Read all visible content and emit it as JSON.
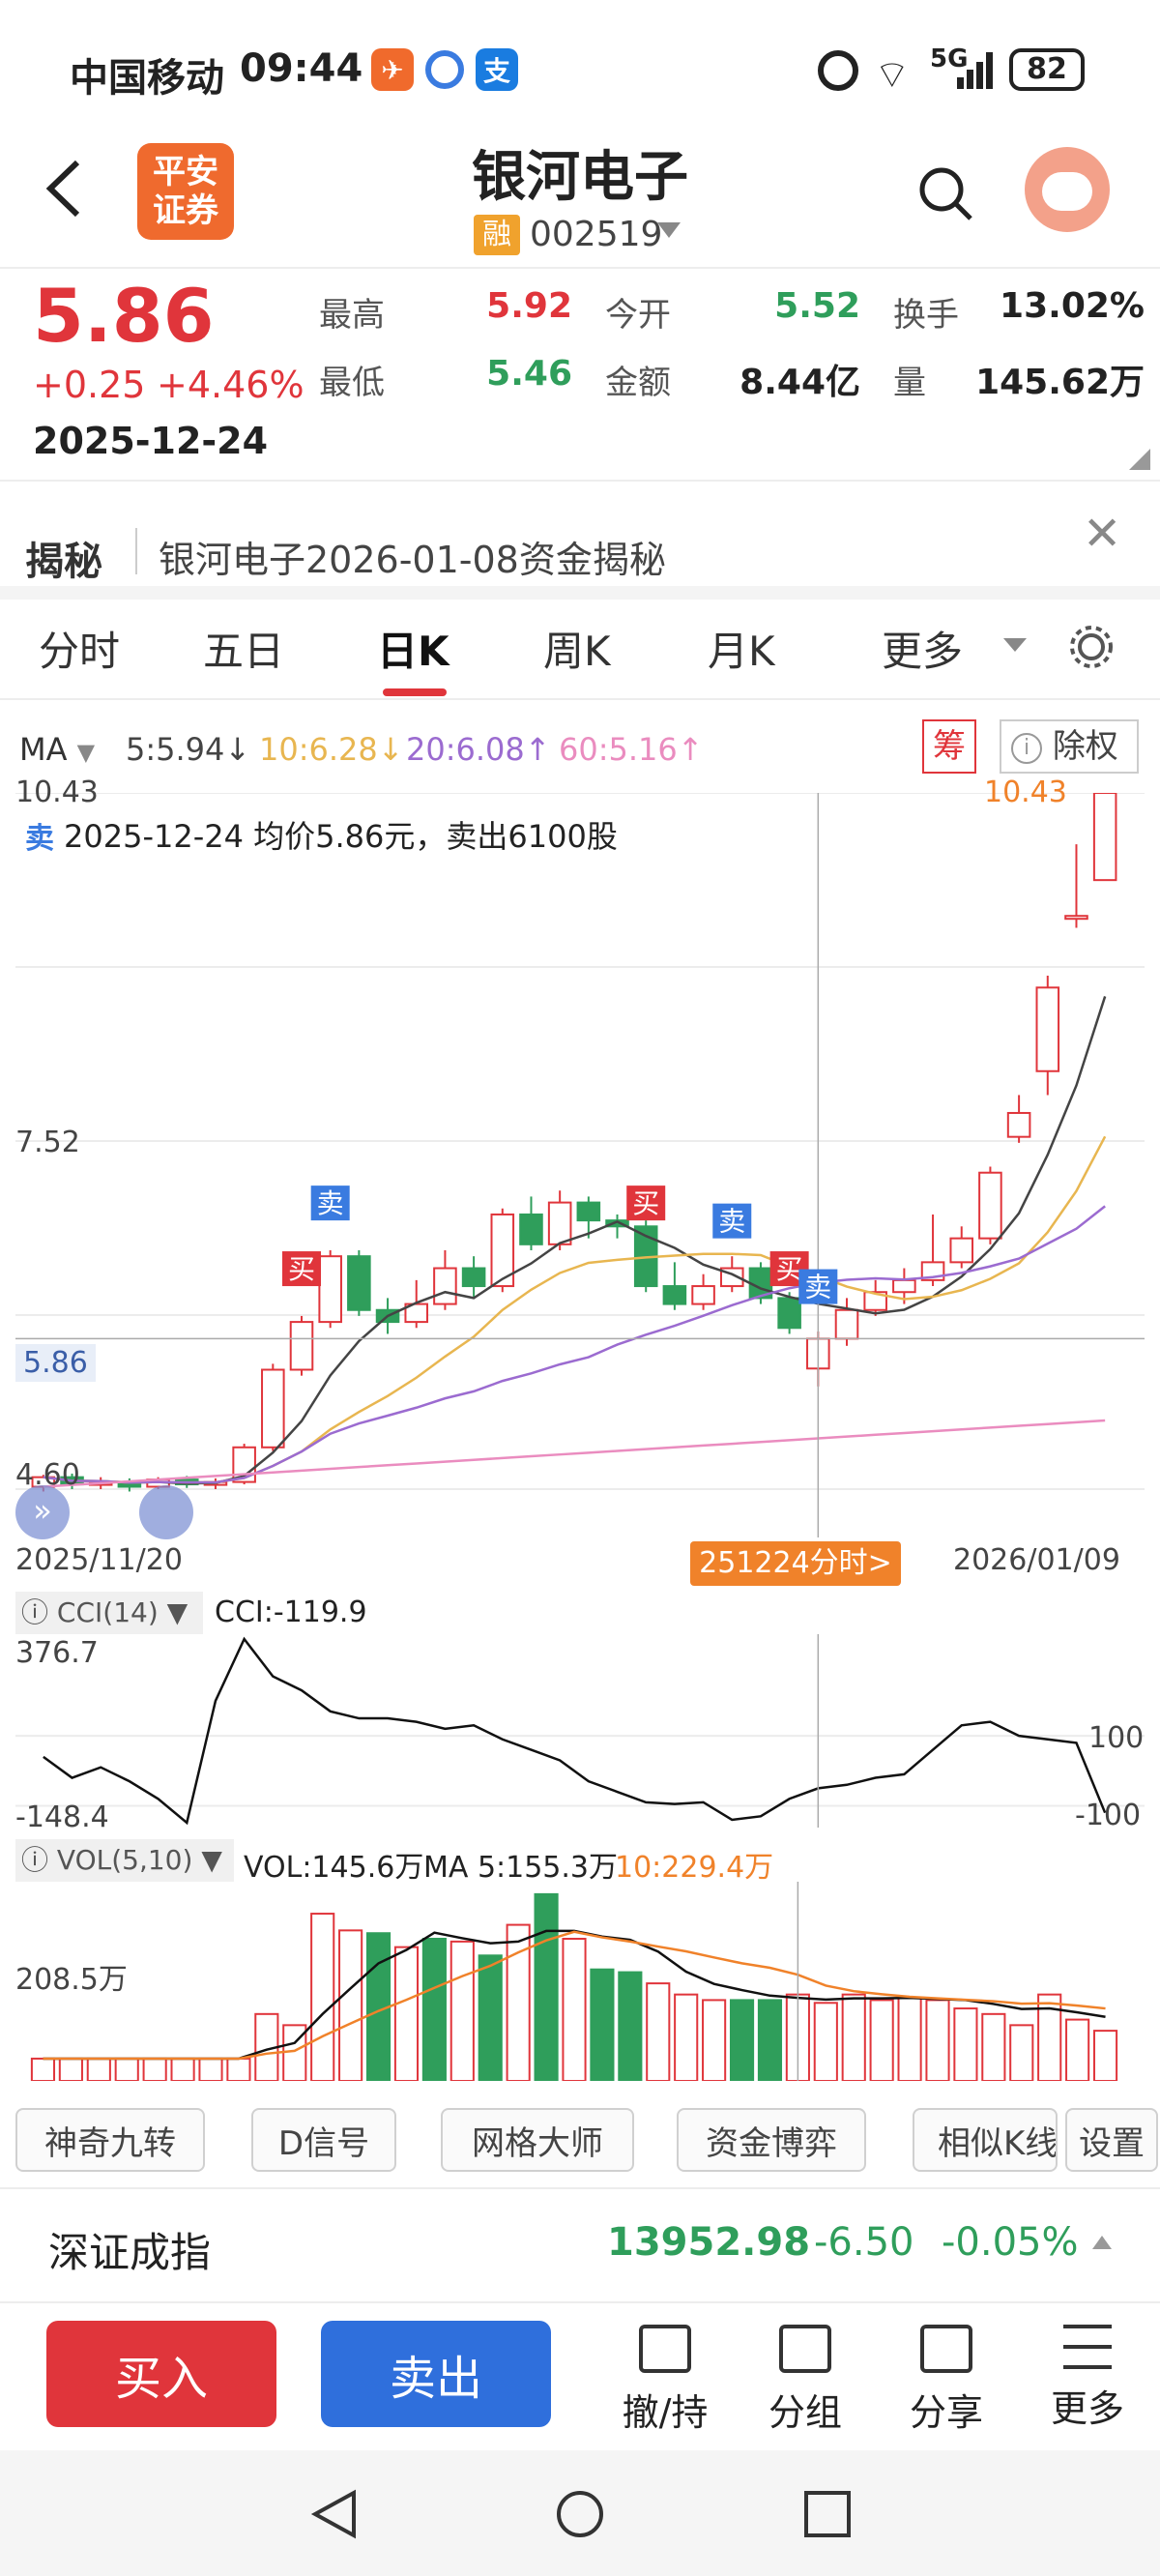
{
  "status_bar": {
    "carrier": "中国移动",
    "time": "09:44",
    "network": "5G",
    "battery": "82"
  },
  "header": {
    "broker_logo": "平安\n证券",
    "stock_name": "银河电子",
    "margin_badge": "融",
    "stock_code": "002519",
    "search_icon": "search-icon",
    "avatar_icon": "assistant-avatar-icon"
  },
  "quote": {
    "price": "5.86",
    "change": "+0.25",
    "change_pct": "+4.46%",
    "date": "2025-12-24",
    "high_label": "最高",
    "high": "5.92",
    "open_label": "今开",
    "open": "5.52",
    "turnover_label": "换手",
    "turnover": "13.02%",
    "low_label": "最低",
    "low": "5.46",
    "amount_label": "金额",
    "amount": "8.44亿",
    "volume_label": "量",
    "volume": "145.62万"
  },
  "reveal": {
    "label": "揭秘",
    "text": "银河电子2026-01-08资金揭秘"
  },
  "tabs": [
    {
      "label": "分时"
    },
    {
      "label": "五日"
    },
    {
      "label": "日K"
    },
    {
      "label": "周K"
    },
    {
      "label": "月K"
    },
    {
      "label": "更多"
    }
  ],
  "ma_bar": {
    "ma_label": "MA",
    "ma5": "5:5.94↓",
    "ma10": "10:6.28↓",
    "ma20": "20:6.08↑",
    "ma60": "60:5.16↑",
    "chip_btn": "筹",
    "exright_btn": "除权"
  },
  "kline": {
    "high_label": "10.43",
    "max_marker": "10.43",
    "mid_label": "7.52",
    "low_label": "4.60",
    "current_price_tag": "5.86",
    "trade_note_badge": "卖",
    "trade_note": "2025-12-24 均价5.86元，卖出6100股",
    "start_date": "2025/11/20",
    "end_date": "2026/01/09",
    "intraday_tag": "251224分时>",
    "buy_tag": "买",
    "sell_tag": "卖"
  },
  "cci": {
    "label": "CCI(14)",
    "value": "CCI:-119.9",
    "top": "376.7",
    "bottom": "-148.4",
    "level_100": "100",
    "level_neg100": "-100"
  },
  "vol": {
    "label": "VOL(5,10)",
    "vol_value": "VOL:145.6万",
    "ma5": "MA 5:155.3万",
    "ma10": "10:229.4万",
    "axis": "208.5万"
  },
  "tools": [
    {
      "label": "神奇九转"
    },
    {
      "label": "D信号"
    },
    {
      "label": "网格大师"
    },
    {
      "label": "资金博弈"
    },
    {
      "label": "相似K线"
    },
    {
      "label": "设置"
    }
  ],
  "index": {
    "name": "深证成指",
    "value": "13952.98",
    "change": "-6.50",
    "change_pct": "-0.05%"
  },
  "actions": {
    "buy": "买入",
    "sell": "卖出",
    "cancel": "撤/持",
    "group": "分组",
    "share": "分享",
    "more": "更多"
  },
  "colors": {
    "up": "#e0353b",
    "down": "#2f9e5b",
    "ma5": "#444444",
    "ma10": "#e8b650",
    "ma20": "#9b6bd0",
    "ma60": "#ea8cbf",
    "buy_button": "#e0353b",
    "sell_button": "#2f6fdc",
    "intraday_tag": "#f0822a"
  }
}
